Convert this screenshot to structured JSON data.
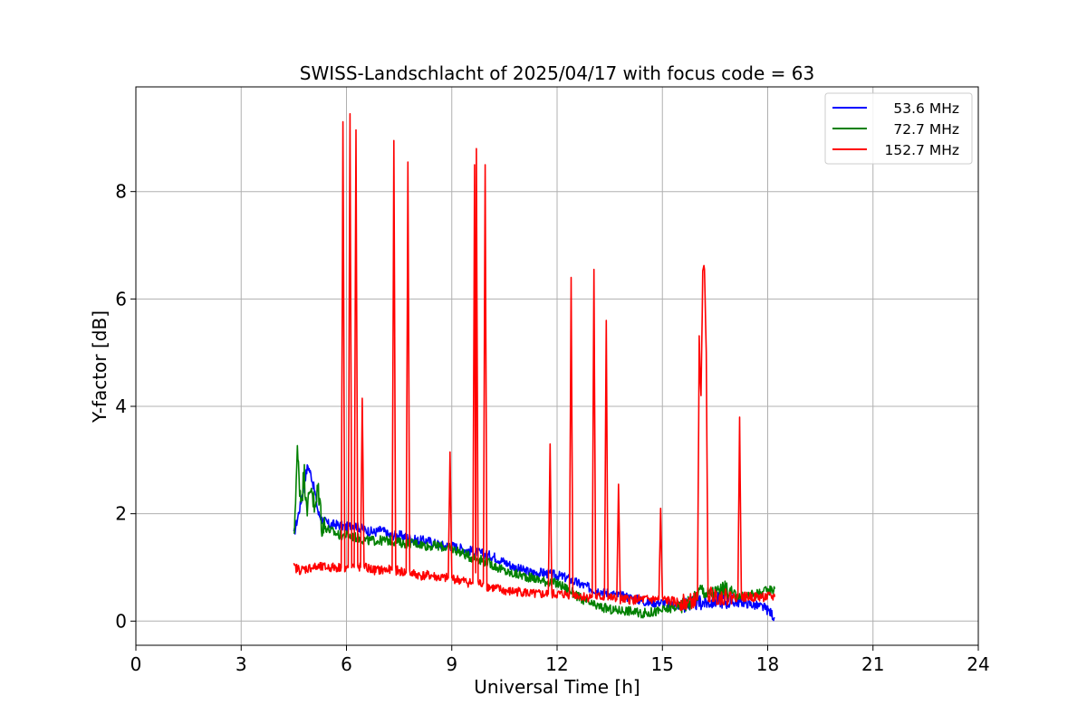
{
  "chart_data": {
    "type": "line",
    "title": "SWISS-Landschlacht of 2025/04/17 with focus code = 63",
    "xlabel": "Universal Time [h]",
    "ylabel": "Y-factor [dB]",
    "xlim": [
      0,
      24
    ],
    "ylim": [
      -0.45,
      9.95
    ],
    "xticks": [
      0,
      3,
      6,
      9,
      12,
      15,
      18,
      21,
      24
    ],
    "yticks": [
      0,
      2,
      4,
      6,
      8
    ],
    "grid": true,
    "legend_position": "top-right",
    "series": [
      {
        "name": "53.6 MHz",
        "color": "#0000ff",
        "points": [
          [
            4.5,
            1.6
          ],
          [
            4.6,
            1.9
          ],
          [
            4.7,
            2.2
          ],
          [
            4.8,
            2.6
          ],
          [
            4.9,
            2.9
          ],
          [
            5.0,
            2.7
          ],
          [
            5.1,
            2.4
          ],
          [
            5.2,
            2.0
          ],
          [
            5.3,
            1.9
          ],
          [
            5.5,
            1.8
          ],
          [
            5.7,
            1.8
          ],
          [
            6.0,
            1.75
          ],
          [
            6.2,
            1.8
          ],
          [
            6.5,
            1.7
          ],
          [
            6.8,
            1.65
          ],
          [
            7.0,
            1.7
          ],
          [
            7.2,
            1.6
          ],
          [
            7.5,
            1.6
          ],
          [
            7.8,
            1.55
          ],
          [
            8.0,
            1.5
          ],
          [
            8.3,
            1.5
          ],
          [
            8.5,
            1.45
          ],
          [
            8.8,
            1.4
          ],
          [
            9.0,
            1.4
          ],
          [
            9.3,
            1.35
          ],
          [
            9.6,
            1.3
          ],
          [
            9.9,
            1.25
          ],
          [
            10.2,
            1.2
          ],
          [
            10.5,
            1.1
          ],
          [
            10.8,
            1.0
          ],
          [
            11.0,
            0.95
          ],
          [
            11.3,
            0.9
          ],
          [
            11.6,
            0.9
          ],
          [
            12.0,
            0.85
          ],
          [
            12.3,
            0.8
          ],
          [
            12.6,
            0.7
          ],
          [
            13.0,
            0.6
          ],
          [
            13.3,
            0.55
          ],
          [
            13.6,
            0.5
          ],
          [
            14.0,
            0.45
          ],
          [
            14.3,
            0.4
          ],
          [
            14.6,
            0.35
          ],
          [
            15.0,
            0.35
          ],
          [
            15.3,
            0.3
          ],
          [
            15.6,
            0.3
          ],
          [
            16.0,
            0.35
          ],
          [
            16.3,
            0.35
          ],
          [
            16.6,
            0.4
          ],
          [
            17.0,
            0.35
          ],
          [
            17.3,
            0.35
          ],
          [
            17.6,
            0.3
          ],
          [
            17.9,
            0.25
          ],
          [
            18.1,
            0.15
          ],
          [
            18.2,
            0.05
          ]
        ]
      },
      {
        "name": "72.7 MHz",
        "color": "#008000",
        "points": [
          [
            4.5,
            1.4
          ],
          [
            4.55,
            2.4
          ],
          [
            4.6,
            3.1
          ],
          [
            4.7,
            2.3
          ],
          [
            4.8,
            2.7
          ],
          [
            4.9,
            2.1
          ],
          [
            5.0,
            2.6
          ],
          [
            5.1,
            2.0
          ],
          [
            5.2,
            2.5
          ],
          [
            5.3,
            1.8
          ],
          [
            5.5,
            1.7
          ],
          [
            5.8,
            1.6
          ],
          [
            6.0,
            1.6
          ],
          [
            6.3,
            1.55
          ],
          [
            6.6,
            1.5
          ],
          [
            7.0,
            1.5
          ],
          [
            7.3,
            1.5
          ],
          [
            7.6,
            1.45
          ],
          [
            8.0,
            1.45
          ],
          [
            8.3,
            1.4
          ],
          [
            8.6,
            1.4
          ],
          [
            9.0,
            1.35
          ],
          [
            9.2,
            1.3
          ],
          [
            9.5,
            1.2
          ],
          [
            9.8,
            1.15
          ],
          [
            10.0,
            1.1
          ],
          [
            10.3,
            1.0
          ],
          [
            10.6,
            0.9
          ],
          [
            11.0,
            0.85
          ],
          [
            11.3,
            0.8
          ],
          [
            11.6,
            0.75
          ],
          [
            12.0,
            0.7
          ],
          [
            12.3,
            0.6
          ],
          [
            12.6,
            0.45
          ],
          [
            13.0,
            0.3
          ],
          [
            13.3,
            0.25
          ],
          [
            13.6,
            0.2
          ],
          [
            14.0,
            0.2
          ],
          [
            14.3,
            0.15
          ],
          [
            14.6,
            0.15
          ],
          [
            15.0,
            0.2
          ],
          [
            15.3,
            0.25
          ],
          [
            15.6,
            0.3
          ],
          [
            15.9,
            0.4
          ],
          [
            16.1,
            0.6
          ],
          [
            16.3,
            0.5
          ],
          [
            16.6,
            0.55
          ],
          [
            16.8,
            0.6
          ],
          [
            17.0,
            0.5
          ],
          [
            17.3,
            0.45
          ],
          [
            17.6,
            0.5
          ],
          [
            17.9,
            0.55
          ],
          [
            18.2,
            0.6
          ]
        ]
      },
      {
        "name": "152.7 MHz",
        "color": "#ff0000",
        "points": [
          [
            4.5,
            1.0
          ],
          [
            4.7,
            0.95
          ],
          [
            5.0,
            1.0
          ],
          [
            5.3,
            1.0
          ],
          [
            5.6,
            1.0
          ],
          [
            5.85,
            1.0
          ],
          [
            5.9,
            9.3
          ],
          [
            5.95,
            1.0
          ],
          [
            6.05,
            1.0
          ],
          [
            6.1,
            9.45
          ],
          [
            6.15,
            1.0
          ],
          [
            6.22,
            1.0
          ],
          [
            6.27,
            9.15
          ],
          [
            6.32,
            1.0
          ],
          [
            6.4,
            1.0
          ],
          [
            6.45,
            4.15
          ],
          [
            6.5,
            1.0
          ],
          [
            6.8,
            0.95
          ],
          [
            7.1,
            0.95
          ],
          [
            7.3,
            0.95
          ],
          [
            7.35,
            8.95
          ],
          [
            7.4,
            0.95
          ],
          [
            7.7,
            0.9
          ],
          [
            7.75,
            8.55
          ],
          [
            7.8,
            0.9
          ],
          [
            8.1,
            0.85
          ],
          [
            8.4,
            0.85
          ],
          [
            8.7,
            0.8
          ],
          [
            8.9,
            0.8
          ],
          [
            8.95,
            3.15
          ],
          [
            9.0,
            0.8
          ],
          [
            9.3,
            0.75
          ],
          [
            9.6,
            0.7
          ],
          [
            9.65,
            8.5
          ],
          [
            9.68,
            0.9
          ],
          [
            9.7,
            8.8
          ],
          [
            9.75,
            0.7
          ],
          [
            9.9,
            0.7
          ],
          [
            9.95,
            8.5
          ],
          [
            10.0,
            0.65
          ],
          [
            10.3,
            0.6
          ],
          [
            10.6,
            0.55
          ],
          [
            11.0,
            0.55
          ],
          [
            11.3,
            0.5
          ],
          [
            11.6,
            0.5
          ],
          [
            11.75,
            0.5
          ],
          [
            11.8,
            3.3
          ],
          [
            11.85,
            0.5
          ],
          [
            12.1,
            0.5
          ],
          [
            12.35,
            0.5
          ],
          [
            12.4,
            6.4
          ],
          [
            12.45,
            0.5
          ],
          [
            12.8,
            0.45
          ],
          [
            13.0,
            0.45
          ],
          [
            13.05,
            6.55
          ],
          [
            13.1,
            0.45
          ],
          [
            13.35,
            0.45
          ],
          [
            13.4,
            5.6
          ],
          [
            13.45,
            0.45
          ],
          [
            13.7,
            0.4
          ],
          [
            13.75,
            2.55
          ],
          [
            13.8,
            0.4
          ],
          [
            14.2,
            0.4
          ],
          [
            14.6,
            0.4
          ],
          [
            14.9,
            0.4
          ],
          [
            14.95,
            2.1
          ],
          [
            15.0,
            0.4
          ],
          [
            15.4,
            0.35
          ],
          [
            15.7,
            0.35
          ],
          [
            16.0,
            0.4
          ],
          [
            16.05,
            5.25
          ],
          [
            16.1,
            4.2
          ],
          [
            16.15,
            6.4
          ],
          [
            16.2,
            6.55
          ],
          [
            16.25,
            5.0
          ],
          [
            16.3,
            0.5
          ],
          [
            16.6,
            0.45
          ],
          [
            17.0,
            0.45
          ],
          [
            17.15,
            0.45
          ],
          [
            17.2,
            3.8
          ],
          [
            17.25,
            0.45
          ],
          [
            17.6,
            0.45
          ],
          [
            17.9,
            0.45
          ],
          [
            18.2,
            0.45
          ]
        ]
      }
    ]
  }
}
